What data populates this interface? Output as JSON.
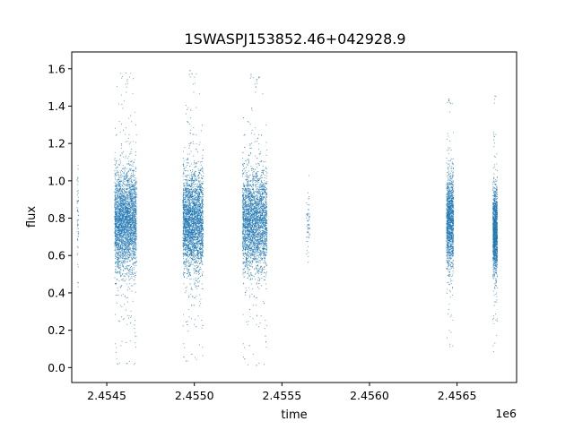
{
  "chart_data": {
    "type": "scatter",
    "title": "1SWASPJ153852.46+042928.9",
    "xlabel": "time",
    "ylabel": "flux",
    "x_offset_label": "1e6",
    "x_scale": 1000000,
    "xlim": [
      2454300,
      2456840
    ],
    "ylim": [
      -0.08,
      1.69
    ],
    "x_ticks": [
      2454500,
      2455000,
      2455500,
      2456000,
      2456500
    ],
    "x_tick_labels": [
      "2.4545",
      "2.4550",
      "2.4555",
      "2.4560",
      "2.4565"
    ],
    "y_ticks": [
      0.0,
      0.2,
      0.4,
      0.6,
      0.8,
      1.0,
      1.2,
      1.4,
      1.6
    ],
    "y_tick_labels": [
      "0.0",
      "0.2",
      "0.4",
      "0.6",
      "0.8",
      "1.0",
      "1.2",
      "1.4",
      "1.6"
    ],
    "grid": false,
    "marker_color": "#1f77b4",
    "observing_seasons": [
      {
        "t_start": 2454330,
        "t_end": 2454340,
        "flux_center": 0.8,
        "flux_spread": 0.14,
        "flux_min": 0.43,
        "flux_max": 1.24,
        "density": "low"
      },
      {
        "t_start": 2454545,
        "t_end": 2454670,
        "flux_center": 0.78,
        "flux_spread": 0.13,
        "flux_min": 0.01,
        "flux_max": 1.58,
        "density": "high"
      },
      {
        "t_start": 2454935,
        "t_end": 2455050,
        "flux_center": 0.78,
        "flux_spread": 0.13,
        "flux_min": 0.02,
        "flux_max": 1.6,
        "density": "high"
      },
      {
        "t_start": 2455275,
        "t_end": 2455415,
        "flux_center": 0.78,
        "flux_spread": 0.13,
        "flux_min": 0.0,
        "flux_max": 1.58,
        "density": "high"
      },
      {
        "t_start": 2455640,
        "t_end": 2455660,
        "flux_center": 0.78,
        "flux_spread": 0.1,
        "flux_min": 0.21,
        "flux_max": 1.25,
        "density": "low"
      },
      {
        "t_start": 2456440,
        "t_end": 2456480,
        "flux_center": 0.78,
        "flux_spread": 0.12,
        "flux_min": 0.08,
        "flux_max": 1.46,
        "density": "medium"
      },
      {
        "t_start": 2456705,
        "t_end": 2456730,
        "flux_center": 0.73,
        "flux_spread": 0.11,
        "flux_min": 0.07,
        "flux_max": 1.48,
        "density": "medium"
      }
    ]
  }
}
